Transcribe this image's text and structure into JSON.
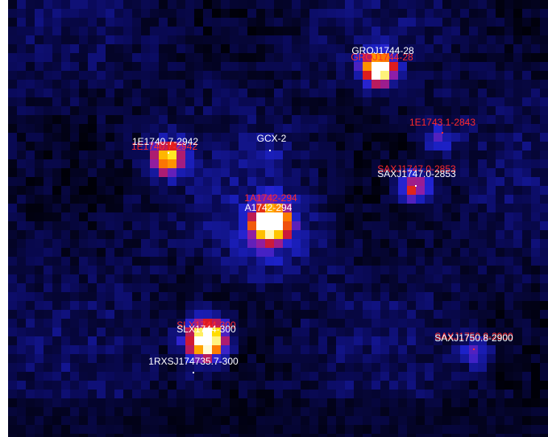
{
  "labels": [
    {
      "text": "GROJ1744-28",
      "color": "#ff2a2a"
    },
    {
      "text": "GROJ1744-28",
      "color": "#ffffff"
    },
    {
      "text": "1E1743.1-2843",
      "color": "#ff2a2a"
    },
    {
      "text": "1E1740.7-2942",
      "color": "#ff2a2a"
    },
    {
      "text": "1E1740.7-2942",
      "color": "#ffffff"
    },
    {
      "text": "GCX-2",
      "color": "#ffffff"
    },
    {
      "text": "SAXJ1747.0-2853",
      "color": "#ff2a2a"
    },
    {
      "text": "SAXJ1747.0-2853",
      "color": "#ffffff"
    },
    {
      "text": "1A1742-294",
      "color": "#ff2a2a"
    },
    {
      "text": "A1742-294",
      "color": "#ffffff"
    },
    {
      "text": "SLX1744-300",
      "color": "#ff2a2a"
    },
    {
      "text": "SLX1744-300",
      "color": "#ffffff"
    },
    {
      "text": "1RXSJ174735.7-300",
      "color": "#ffffff"
    },
    {
      "text": "SAXJ1750.8-2900",
      "color": "#ff2a2a"
    },
    {
      "text": "SAXJ1750.8-2900",
      "color": "#ffffff"
    }
  ]
}
